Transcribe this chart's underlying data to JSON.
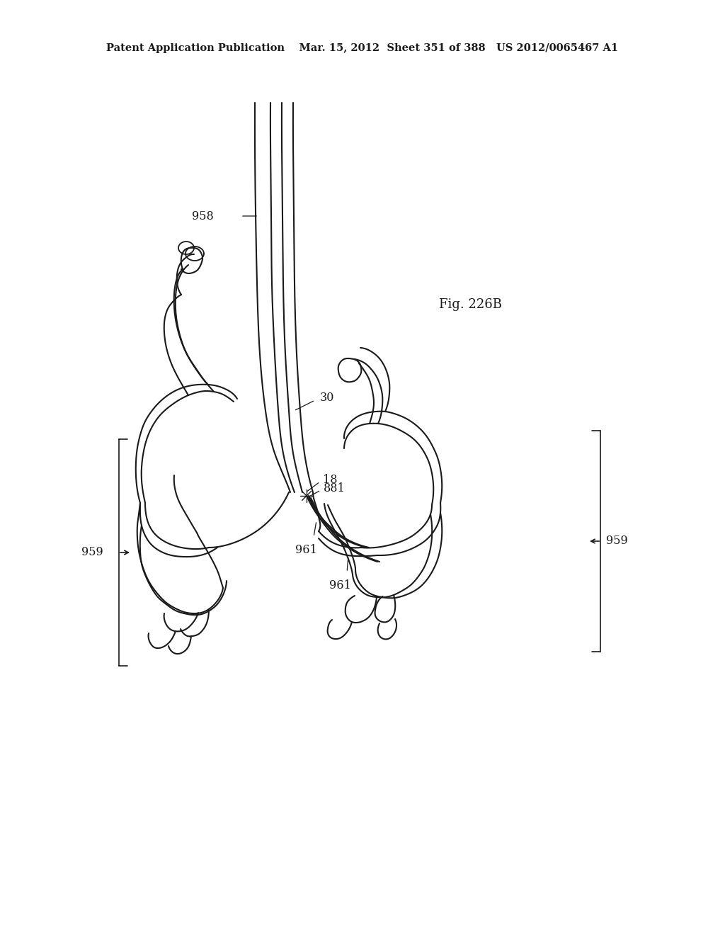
{
  "bg_color": "#ffffff",
  "lc": "#1a1a1a",
  "header": "Patent Application Publication    Mar. 15, 2012  Sheet 351 of 388   US 2012/0065467 A1",
  "fig_label": "Fig. 226B",
  "header_fs": 10.5,
  "label_fs": 11.5
}
